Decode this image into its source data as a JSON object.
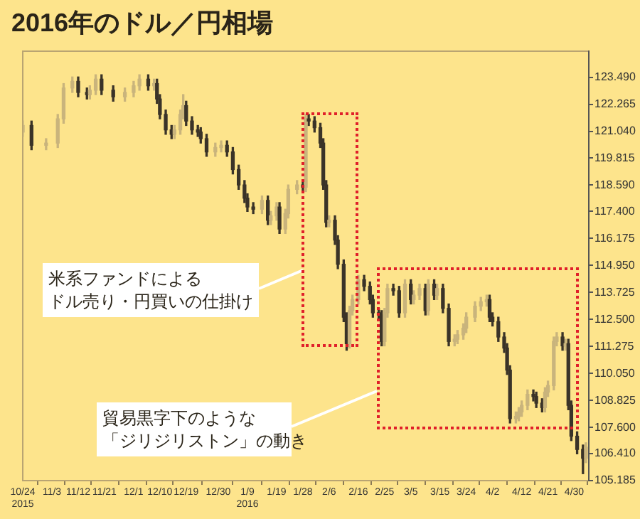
{
  "chart_data": {
    "type": "candlestick",
    "title": "2016年のドル／円相場",
    "x": [
      "2015-10-24",
      "2015-10-27",
      "2015-11-01",
      "2015-11-05",
      "2015-11-07",
      "2015-11-10",
      "2015-11-12",
      "2015-11-15",
      "2015-11-16",
      "2015-11-18",
      "2015-11-20",
      "2015-11-24",
      "2015-11-28",
      "2015-12-01",
      "2015-12-03",
      "2015-12-06",
      "2015-12-08",
      "2015-12-09",
      "2015-12-10",
      "2015-12-12",
      "2015-12-14",
      "2015-12-15",
      "2015-12-17",
      "2015-12-18",
      "2015-12-19",
      "2015-12-21",
      "2015-12-23",
      "2015-12-24",
      "2015-12-26",
      "2015-12-29",
      "2015-12-31",
      "2016-01-02",
      "2016-01-04",
      "2016-01-06",
      "2016-01-08",
      "2016-01-09",
      "2016-01-11",
      "2016-01-14",
      "2016-01-16",
      "2016-01-17",
      "2016-01-19",
      "2016-01-20",
      "2016-01-22",
      "2016-01-23",
      "2016-01-26",
      "2016-01-28",
      "2016-01-29",
      "2016-01-30",
      "2016-02-01",
      "2016-02-03",
      "2016-02-04",
      "2016-02-05",
      "2016-02-06",
      "2016-02-08",
      "2016-02-09",
      "2016-02-11",
      "2016-02-12",
      "2016-02-13",
      "2016-02-14",
      "2016-02-16",
      "2016-02-18",
      "2016-02-20",
      "2016-02-21",
      "2016-02-23",
      "2016-02-24",
      "2016-02-25",
      "2016-02-26",
      "2016-02-28",
      "2016-03-01",
      "2016-03-03",
      "2016-03-05",
      "2016-03-06",
      "2016-03-08",
      "2016-03-10",
      "2016-03-11",
      "2016-03-13",
      "2016-03-14",
      "2016-03-16",
      "2016-03-18",
      "2016-03-20",
      "2016-03-21",
      "2016-03-23",
      "2016-03-24",
      "2016-03-27",
      "2016-03-29",
      "2016-03-31",
      "2016-04-01",
      "2016-04-02",
      "2016-04-04",
      "2016-04-06",
      "2016-04-07",
      "2016-04-08",
      "2016-04-10",
      "2016-04-11",
      "2016-04-12",
      "2016-04-14",
      "2016-04-16",
      "2016-04-17",
      "2016-04-19",
      "2016-04-20",
      "2016-04-21",
      "2016-04-23",
      "2016-04-24",
      "2016-04-26",
      "2016-04-27",
      "2016-04-28",
      "2016-04-29",
      "2016-05-01",
      "2016-05-03",
      "2016-05-04"
    ],
    "ohlc": [
      [
        121.0,
        121.5,
        120.8,
        121.3
      ],
      [
        121.3,
        121.5,
        120.2,
        120.4
      ],
      [
        120.4,
        120.7,
        120.2,
        120.5
      ],
      [
        120.5,
        121.8,
        120.3,
        121.6
      ],
      [
        121.6,
        123.2,
        121.4,
        123.0
      ],
      [
        123.0,
        123.5,
        122.8,
        123.3
      ],
      [
        123.3,
        123.5,
        122.6,
        122.8
      ],
      [
        122.8,
        123.0,
        122.5,
        122.7
      ],
      [
        122.7,
        123.1,
        122.5,
        122.9
      ],
      [
        122.9,
        123.6,
        122.7,
        123.4
      ],
      [
        123.4,
        123.6,
        122.7,
        122.9
      ],
      [
        122.9,
        123.1,
        122.4,
        122.6
      ],
      [
        122.6,
        123.0,
        122.4,
        122.8
      ],
      [
        122.8,
        123.3,
        122.6,
        123.1
      ],
      [
        123.1,
        123.6,
        122.9,
        123.4
      ],
      [
        123.4,
        123.6,
        122.9,
        123.1
      ],
      [
        123.1,
        123.4,
        122.9,
        123.2
      ],
      [
        123.2,
        123.4,
        122.3,
        122.5
      ],
      [
        122.5,
        122.7,
        121.6,
        121.8
      ],
      [
        121.8,
        122.0,
        120.9,
        121.1
      ],
      [
        121.1,
        121.3,
        120.7,
        120.9
      ],
      [
        120.9,
        121.3,
        120.7,
        121.1
      ],
      [
        121.1,
        122.0,
        120.9,
        121.8
      ],
      [
        121.8,
        122.7,
        121.6,
        122.2
      ],
      [
        122.2,
        122.4,
        121.3,
        121.5
      ],
      [
        121.5,
        121.7,
        120.9,
        121.1
      ],
      [
        121.1,
        121.3,
        120.8,
        121.0
      ],
      [
        121.0,
        121.2,
        120.5,
        120.7
      ],
      [
        120.7,
        120.9,
        119.9,
        120.1
      ],
      [
        120.1,
        120.5,
        119.9,
        120.3
      ],
      [
        120.3,
        120.6,
        120.1,
        120.4
      ],
      [
        120.4,
        120.6,
        119.9,
        120.1
      ],
      [
        120.1,
        120.3,
        119.1,
        119.3
      ],
      [
        119.3,
        119.5,
        118.4,
        118.6
      ],
      [
        118.6,
        118.8,
        117.8,
        118.0
      ],
      [
        118.0,
        118.2,
        117.4,
        117.6
      ],
      [
        117.6,
        117.8,
        117.3,
        117.5
      ],
      [
        117.5,
        118.1,
        117.3,
        117.9
      ],
      [
        117.9,
        118.1,
        116.8,
        117.0
      ],
      [
        117.0,
        117.4,
        116.8,
        117.2
      ],
      [
        117.2,
        117.8,
        117.0,
        117.6
      ],
      [
        117.6,
        117.8,
        116.4,
        116.6
      ],
      [
        116.6,
        117.5,
        116.4,
        117.3
      ],
      [
        117.3,
        118.6,
        117.1,
        118.4
      ],
      [
        118.4,
        118.8,
        118.2,
        118.6
      ],
      [
        118.6,
        118.8,
        118.3,
        118.5
      ],
      [
        118.5,
        121.8,
        118.3,
        121.6
      ],
      [
        121.6,
        121.8,
        121.3,
        121.5
      ],
      [
        121.5,
        121.7,
        121.0,
        121.2
      ],
      [
        121.2,
        121.4,
        120.3,
        120.5
      ],
      [
        120.5,
        120.7,
        118.4,
        118.6
      ],
      [
        118.6,
        118.8,
        116.7,
        116.9
      ],
      [
        116.9,
        117.2,
        116.7,
        117.0
      ],
      [
        117.0,
        117.2,
        115.9,
        116.1
      ],
      [
        116.1,
        116.3,
        114.8,
        115.0
      ],
      [
        115.0,
        115.2,
        112.4,
        112.6
      ],
      [
        112.6,
        112.8,
        111.1,
        111.4
      ],
      [
        111.4,
        113.1,
        111.2,
        112.9
      ],
      [
        112.9,
        113.6,
        112.7,
        113.4
      ],
      [
        113.4,
        114.5,
        113.2,
        114.3
      ],
      [
        114.3,
        114.5,
        113.8,
        114.0
      ],
      [
        114.0,
        114.2,
        113.2,
        113.4
      ],
      [
        113.4,
        113.6,
        112.6,
        112.8
      ],
      [
        112.8,
        113.0,
        112.5,
        112.7
      ],
      [
        112.7,
        112.9,
        111.3,
        111.5
      ],
      [
        111.5,
        113.0,
        111.3,
        112.8
      ],
      [
        112.8,
        114.1,
        112.6,
        113.9
      ],
      [
        113.9,
        114.1,
        113.6,
        113.8
      ],
      [
        113.8,
        114.0,
        112.6,
        112.8
      ],
      [
        112.8,
        114.3,
        112.6,
        114.1
      ],
      [
        114.1,
        114.3,
        113.2,
        113.4
      ],
      [
        113.4,
        113.8,
        113.2,
        113.6
      ],
      [
        113.6,
        114.1,
        113.4,
        113.9
      ],
      [
        113.9,
        114.1,
        112.7,
        112.9
      ],
      [
        112.9,
        114.3,
        112.7,
        114.1
      ],
      [
        114.1,
        114.3,
        113.4,
        113.6
      ],
      [
        113.6,
        114.1,
        113.4,
        113.9
      ],
      [
        113.9,
        114.1,
        112.8,
        113.0
      ],
      [
        113.0,
        113.2,
        111.3,
        111.5
      ],
      [
        111.5,
        111.8,
        111.3,
        111.6
      ],
      [
        111.6,
        112.0,
        111.4,
        111.8
      ],
      [
        111.8,
        112.3,
        111.6,
        112.1
      ],
      [
        112.1,
        112.8,
        111.9,
        112.6
      ],
      [
        112.6,
        113.3,
        112.4,
        113.1
      ],
      [
        113.1,
        113.5,
        112.9,
        113.3
      ],
      [
        113.3,
        113.6,
        113.1,
        113.4
      ],
      [
        113.4,
        113.6,
        112.4,
        112.6
      ],
      [
        112.6,
        112.8,
        112.2,
        112.4
      ],
      [
        112.4,
        112.6,
        111.5,
        111.7
      ],
      [
        111.7,
        111.9,
        111.0,
        111.2
      ],
      [
        111.2,
        111.4,
        110.0,
        110.2
      ],
      [
        110.2,
        110.4,
        107.8,
        108.0
      ],
      [
        108.0,
        108.3,
        107.8,
        108.1
      ],
      [
        108.1,
        108.5,
        107.9,
        108.3
      ],
      [
        108.3,
        108.8,
        108.1,
        108.6
      ],
      [
        108.6,
        109.3,
        108.4,
        109.1
      ],
      [
        109.1,
        109.3,
        108.8,
        109.0
      ],
      [
        109.0,
        109.2,
        108.5,
        108.7
      ],
      [
        108.7,
        108.9,
        108.3,
        108.5
      ],
      [
        108.5,
        109.4,
        108.3,
        109.2
      ],
      [
        109.2,
        109.7,
        109.0,
        109.5
      ],
      [
        109.5,
        111.7,
        109.3,
        111.5
      ],
      [
        111.5,
        111.9,
        111.3,
        111.7
      ],
      [
        111.7,
        111.9,
        111.1,
        111.3
      ],
      [
        111.3,
        111.6,
        111.1,
        111.4
      ],
      [
        111.4,
        111.6,
        108.4,
        108.6
      ],
      [
        108.6,
        108.8,
        107.0,
        107.2
      ],
      [
        107.2,
        107.4,
        106.4,
        106.6
      ],
      [
        106.6,
        106.8,
        105.5,
        106.2
      ],
      [
        106.2,
        106.9,
        106.0,
        106.7
      ]
    ],
    "xlim": [
      "2015-10-24",
      "2016-05-05"
    ],
    "xticks": [
      {
        "value": "2015-10-24",
        "label": "10/24\n2015"
      },
      {
        "value": "2015-11-03",
        "label": "11/3"
      },
      {
        "value": "2015-11-12",
        "label": "11/12"
      },
      {
        "value": "2015-11-21",
        "label": "11/21"
      },
      {
        "value": "2015-12-01",
        "label": "12/1"
      },
      {
        "value": "2015-12-10",
        "label": "12/10"
      },
      {
        "value": "2015-12-19",
        "label": "12/19"
      },
      {
        "value": "2015-12-30",
        "label": "12/30"
      },
      {
        "value": "2016-01-09",
        "label": "1/9\n2016"
      },
      {
        "value": "2016-01-19",
        "label": "1/19"
      },
      {
        "value": "2016-01-28",
        "label": "1/28"
      },
      {
        "value": "2016-02-06",
        "label": "2/6"
      },
      {
        "value": "2016-02-16",
        "label": "2/16"
      },
      {
        "value": "2016-02-25",
        "label": "2/25"
      },
      {
        "value": "2016-03-05",
        "label": "3/5"
      },
      {
        "value": "2016-03-15",
        "label": "3/15"
      },
      {
        "value": "2016-03-24",
        "label": "3/24"
      },
      {
        "value": "2016-04-02",
        "label": "4/2"
      },
      {
        "value": "2016-04-12",
        "label": "4/12"
      },
      {
        "value": "2016-04-21",
        "label": "4/21"
      },
      {
        "value": "2016-04-30",
        "label": "4/30"
      }
    ],
    "ylim": [
      105.185,
      124.67
    ],
    "yticks": [
      {
        "value": 105.185,
        "label": "105.185"
      },
      {
        "value": 106.41,
        "label": "106.410"
      },
      {
        "value": 107.6,
        "label": "107.600"
      },
      {
        "value": 108.825,
        "label": "108.825"
      },
      {
        "value": 110.05,
        "label": "110.050"
      },
      {
        "value": 111.275,
        "label": "111.275"
      },
      {
        "value": 112.5,
        "label": "112.500"
      },
      {
        "value": 113.725,
        "label": "113.725"
      },
      {
        "value": 114.95,
        "label": "114.950"
      },
      {
        "value": 116.175,
        "label": "116.175"
      },
      {
        "value": 117.4,
        "label": "117.400"
      },
      {
        "value": 118.59,
        "label": "118.590"
      },
      {
        "value": 119.815,
        "label": "119.815"
      },
      {
        "value": 121.04,
        "label": "121.040"
      },
      {
        "value": 122.265,
        "label": "122.265"
      },
      {
        "value": 123.49,
        "label": "123.490"
      }
    ],
    "grid": false,
    "legend": false,
    "annotations": [
      "米系ファンドによるドル売り・円買いの仕掛け",
      "貿易黒字下のような「ジリジリストン」の動き"
    ]
  }
}
